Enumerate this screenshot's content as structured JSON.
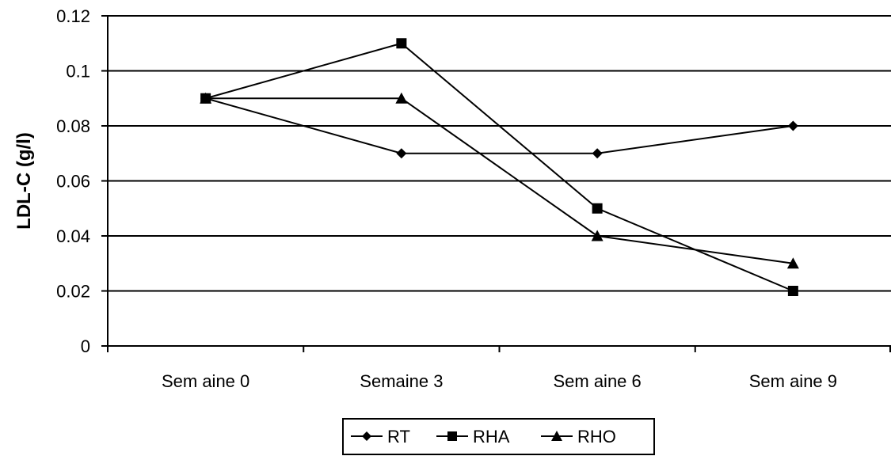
{
  "chart_data": {
    "type": "line",
    "xlabel": "",
    "ylabel": "LDL-C (g/l)",
    "categories": [
      "Sem aine 0",
      "Semaine 3",
      "Sem aine 6",
      "Sem aine 9"
    ],
    "ylim": [
      0,
      0.12
    ],
    "yticks": [
      "0",
      "0.02",
      "0.04",
      "0.06",
      "0.08",
      "0.1",
      "0.12"
    ],
    "ytick_values": [
      0,
      0.02,
      0.04,
      0.06,
      0.08,
      0.1,
      0.12
    ],
    "grid": "horizontal",
    "legend_position": "bottom",
    "series": [
      {
        "name": "RT",
        "marker": "diamond",
        "values": [
          0.09,
          0.07,
          0.07,
          0.08
        ]
      },
      {
        "name": "RHA",
        "marker": "square",
        "values": [
          0.09,
          0.11,
          0.05,
          0.02
        ]
      },
      {
        "name": "RHO",
        "marker": "triangle",
        "values": [
          0.09,
          0.09,
          0.04,
          0.03
        ]
      }
    ],
    "colors": {
      "line": "#000000",
      "grid": "#000000",
      "background": "#ffffff"
    }
  }
}
